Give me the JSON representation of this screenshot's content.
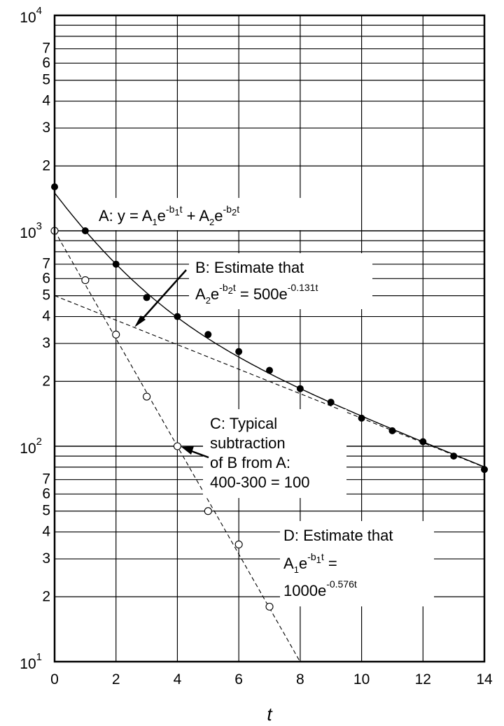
{
  "chart_data": {
    "type": "scatter",
    "title": "",
    "xlabel": "t",
    "ylabel": "",
    "xlim": [
      0,
      14
    ],
    "ylim": [
      10,
      10000
    ],
    "yscale": "log",
    "grid": true,
    "x_ticks": [
      "0",
      "2",
      "4",
      "6",
      "8",
      "10",
      "12",
      "14"
    ],
    "y_tick_labels": {
      "decades": [
        {
          "base": "10",
          "exp": "1"
        },
        {
          "base": "10",
          "exp": "2"
        },
        {
          "base": "10",
          "exp": "3"
        },
        {
          "base": "10",
          "exp": "4"
        }
      ],
      "minor": [
        "2",
        "3",
        "4",
        "5",
        "6",
        "7"
      ]
    },
    "series": [
      {
        "marker": "filled-circle",
        "x": [
          0,
          1,
          2,
          3,
          4,
          5,
          6,
          7,
          8,
          9,
          10,
          11,
          12,
          13,
          14
        ],
        "y": [
          1600,
          1000,
          700,
          490,
          400,
          330,
          275,
          225,
          185,
          160,
          135,
          118,
          105,
          90,
          78
        ]
      },
      {
        "marker": "open-circle",
        "x": [
          0,
          1,
          2,
          3,
          4,
          5,
          6,
          7
        ],
        "y": [
          1000,
          590,
          330,
          170,
          100,
          50,
          35,
          18
        ]
      }
    ],
    "lines": [
      {
        "style": "solid",
        "A1": 1000,
        "b1": 0.576,
        "A2": 500,
        "b2": 0.131,
        "x_range": [
          0,
          14
        ]
      },
      {
        "style": "dashed",
        "A": 500,
        "b": 0.131,
        "x_range": [
          0,
          14
        ]
      },
      {
        "style": "dashed",
        "A": 1000,
        "b": 0.576,
        "x_range": [
          0,
          8
        ]
      }
    ],
    "annotations": {
      "A": {
        "prefix": "A:  y = A",
        "s1": "1",
        "mid1": "e",
        "e1a": "-b",
        "e1b": "1",
        "e1c": "t",
        "plus": " + A",
        "s2": "2",
        "mid2": "e",
        "e2a": "-b",
        "e2b": "2",
        "e2c": "t"
      },
      "B": {
        "line1": "B: Estimate that",
        "l2_a": "A",
        "l2_s": "2",
        "l2_e": "e",
        "l2_xa": "-b",
        "l2_xb": "2",
        "l2_xc": "t",
        "l2_eq": " = 500e",
        "l2_xr": "-0.131t"
      },
      "C": {
        "line1": "C: Typical",
        "line2": "subtraction",
        "line3": "of B from A:",
        "line4": "400-300 = 100"
      },
      "D": {
        "line1": "D: Estimate that",
        "l2_a": "A",
        "l2_s": "1",
        "l2_e": "e",
        "l2_xa": "-b",
        "l2_xb": "1",
        "l2_xc": "t",
        "l2_eq": " =",
        "l3": "1000e",
        "l3_x": "-0.576t"
      }
    }
  }
}
